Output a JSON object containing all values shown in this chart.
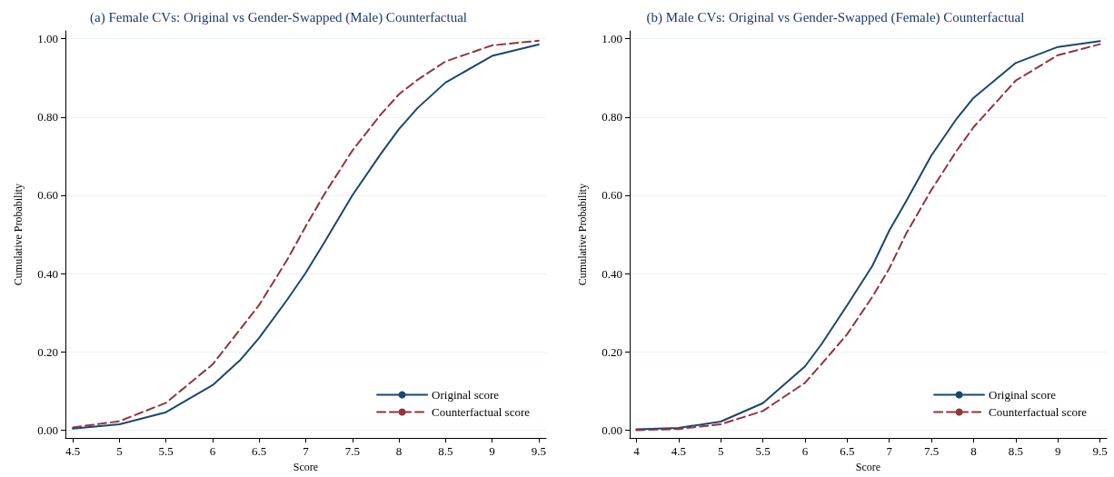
{
  "chart_data": [
    {
      "type": "line",
      "title": "(a) Female CVs: Original vs Gender-Swapped (Male) Counterfactual",
      "xlabel": "Score",
      "ylabel": "Cumulative Probability",
      "x": [
        4.5,
        5,
        5.5,
        6,
        6.3,
        6.5,
        6.8,
        7,
        7.2,
        7.5,
        7.8,
        8,
        8.2,
        8.5,
        9,
        9.5
      ],
      "series": [
        {
          "name": "Original score",
          "color": "#1a476f",
          "line_style": "solid",
          "values": [
            0.004,
            0.015,
            0.046,
            0.115,
            0.18,
            0.236,
            0.333,
            0.402,
            0.48,
            0.6,
            0.704,
            0.769,
            0.823,
            0.888,
            0.956,
            0.985
          ]
        },
        {
          "name": "Counterfactual score",
          "color": "#90353b",
          "line_style": "dashed",
          "values": [
            0.007,
            0.023,
            0.07,
            0.168,
            0.259,
            0.32,
            0.435,
            0.521,
            0.603,
            0.714,
            0.805,
            0.858,
            0.895,
            0.942,
            0.983,
            0.995
          ]
        }
      ],
      "xlim": [
        4.42,
        9.58
      ],
      "xticks": [
        4.5,
        5,
        5.5,
        6,
        6.5,
        7,
        7.5,
        8,
        8.5,
        9,
        9.5
      ],
      "ylim": [
        -0.02,
        1.02
      ],
      "yticks": [
        {
          "value": 0,
          "label": "0.00"
        },
        {
          "value": 0.2,
          "label": "0.20"
        },
        {
          "value": 0.4,
          "label": "0.40"
        },
        {
          "value": 0.6,
          "label": "0.60"
        },
        {
          "value": 0.8,
          "label": "0.80"
        },
        {
          "value": 1,
          "label": "1.00"
        }
      ],
      "grid": "y",
      "legend": "bottom right",
      "marker": "none"
    },
    {
      "type": "line",
      "title": "(b) Male CVs: Original vs Gender-Swapped (Female) Counterfactual",
      "xlabel": "Score",
      "ylabel": "Cumulative Probability",
      "x": [
        4,
        4.5,
        5,
        5.5,
        6,
        6.2,
        6.5,
        6.8,
        7,
        7.2,
        7.5,
        7.8,
        8,
        8.5,
        9,
        9.5
      ],
      "series": [
        {
          "name": "Original score",
          "color": "#1a476f",
          "line_style": "solid",
          "values": [
            0.002,
            0.006,
            0.022,
            0.069,
            0.163,
            0.221,
            0.319,
            0.42,
            0.51,
            0.585,
            0.702,
            0.796,
            0.849,
            0.938,
            0.979,
            0.994
          ]
        },
        {
          "name": "Counterfactual score",
          "color": "#90353b",
          "line_style": "dashed",
          "values": [
            0,
            0.003,
            0.015,
            0.049,
            0.121,
            0.17,
            0.245,
            0.341,
            0.413,
            0.502,
            0.614,
            0.714,
            0.774,
            0.893,
            0.958,
            0.986
          ]
        }
      ],
      "xlim": [
        3.92,
        9.58
      ],
      "xticks": [
        4,
        4.5,
        5,
        5.5,
        6,
        6.5,
        7,
        7.5,
        8,
        8.5,
        9,
        9.5
      ],
      "ylim": [
        -0.02,
        1.02
      ],
      "yticks": [
        {
          "value": 0,
          "label": "0.00"
        },
        {
          "value": 0.2,
          "label": "0.20"
        },
        {
          "value": 0.4,
          "label": "0.40"
        },
        {
          "value": 0.6,
          "label": "0.60"
        },
        {
          "value": 0.8,
          "label": "0.80"
        },
        {
          "value": 1,
          "label": "1.00"
        }
      ],
      "grid": "y",
      "legend": "bottom right",
      "marker": "none"
    }
  ]
}
